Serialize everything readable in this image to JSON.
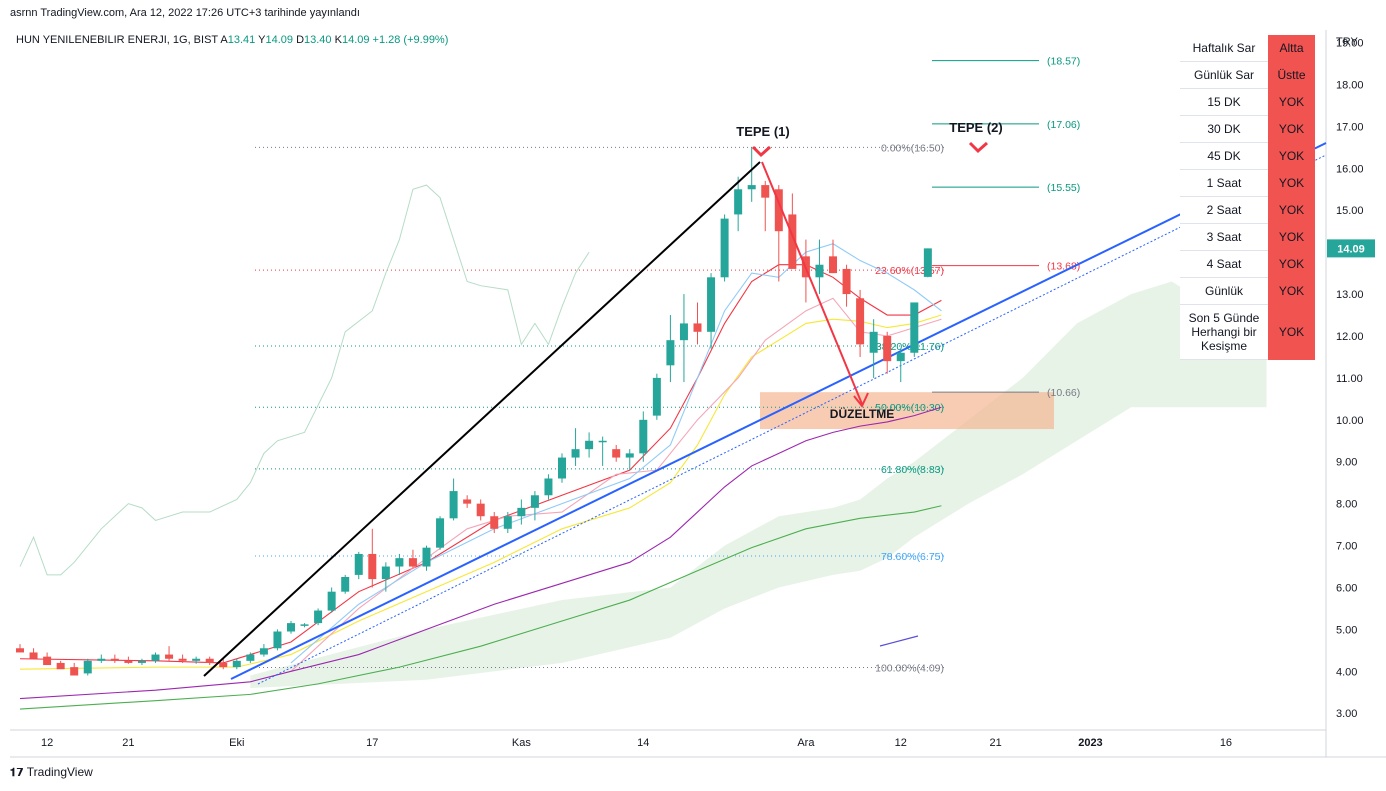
{
  "header": {
    "publish_line": "asrnn TradingView.com, Ara 12, 2022 17:26 UTC+3 tarihinde yayınlandı",
    "symbol_line": "HUN YENILENEBILIR ENERJI, 1G, BIST",
    "ohlc": [
      {
        "key": "A",
        "value": "13.41"
      },
      {
        "key": "Y",
        "value": "14.09"
      },
      {
        "key": "D",
        "value": "13.40"
      },
      {
        "key": "K",
        "value": "14.09"
      }
    ],
    "change": "+1.28 (+9.99%)"
  },
  "brand": "TradingView",
  "currency": "TRY",
  "last_price_label": "14.09",
  "signal_table": [
    {
      "label": "Haftalık Sar",
      "value": "Altta"
    },
    {
      "label": "Günlük Sar",
      "value": "Üstte"
    },
    {
      "label": "15 DK",
      "value": "YOK"
    },
    {
      "label": "30 DK",
      "value": "YOK"
    },
    {
      "label": "45 DK",
      "value": "YOK"
    },
    {
      "label": "1 Saat",
      "value": "YOK"
    },
    {
      "label": "2 Saat",
      "value": "YOK"
    },
    {
      "label": "3 Saat",
      "value": "YOK"
    },
    {
      "label": "4 Saat",
      "value": "YOK"
    },
    {
      "label": "Günlük",
      "value": "YOK"
    },
    {
      "label": "Son 5 Günde Herhangi bir Kesişme",
      "value": "YOK"
    }
  ],
  "colors": {
    "up": "#26a69a",
    "down": "#ef5350",
    "trendline": "#2962ff",
    "accent_red": "#f23645",
    "sma_red": "#f23645",
    "sma_yellow": "#f7e735",
    "sma_purple": "#9c27b0",
    "sma_green": "#4caf50",
    "cloud": "#e6f2e6",
    "correction_zone": "#f5b18a"
  },
  "chart_data": {
    "type": "candlestick",
    "y_axis": {
      "min": 2.6,
      "max": 19.3,
      "ticks": [
        "3.00",
        "4.00",
        "5.00",
        "6.00",
        "7.00",
        "8.00",
        "9.00",
        "10.00",
        "11.00",
        "12.00",
        "13.00",
        "14.00",
        "15.00",
        "16.00",
        "17.00",
        "18.00",
        "19.00"
      ]
    },
    "x_axis_labels": [
      {
        "label": "12",
        "i": 2
      },
      {
        "label": "21",
        "i": 8
      },
      {
        "label": "Eki",
        "i": 16
      },
      {
        "label": "17",
        "i": 26
      },
      {
        "label": "Kas",
        "i": 37
      },
      {
        "label": "14",
        "i": 46
      },
      {
        "label": "Ara",
        "i": 58
      },
      {
        "label": "12",
        "i": 65
      },
      {
        "label": "21",
        "i": 72
      },
      {
        "label": "2023",
        "i": 79
      },
      {
        "label": "16",
        "i": 89
      }
    ],
    "candles": [
      [
        4.55,
        4.65,
        4.48,
        4.45
      ],
      [
        4.45,
        4.55,
        4.35,
        4.3
      ],
      [
        4.35,
        4.45,
        4.22,
        4.15
      ],
      [
        4.2,
        4.25,
        4.1,
        4.05
      ],
      [
        4.1,
        4.2,
        3.95,
        3.9
      ],
      [
        3.95,
        4.3,
        3.9,
        4.25
      ],
      [
        4.25,
        4.4,
        4.2,
        4.3
      ],
      [
        4.3,
        4.4,
        4.2,
        4.25
      ],
      [
        4.25,
        4.35,
        4.18,
        4.2
      ],
      [
        4.2,
        4.3,
        4.15,
        4.25
      ],
      [
        4.25,
        4.45,
        4.2,
        4.4
      ],
      [
        4.4,
        4.6,
        4.25,
        4.3
      ],
      [
        4.3,
        4.4,
        4.2,
        4.25
      ],
      [
        4.25,
        4.35,
        4.18,
        4.3
      ],
      [
        4.3,
        4.35,
        4.15,
        4.2
      ],
      [
        4.2,
        4.3,
        4.05,
        4.1
      ],
      [
        4.1,
        4.3,
        4.05,
        4.25
      ],
      [
        4.25,
        4.45,
        4.2,
        4.4
      ],
      [
        4.4,
        4.65,
        4.35,
        4.55
      ],
      [
        4.55,
        5.0,
        4.5,
        4.95
      ],
      [
        4.95,
        5.2,
        4.9,
        5.15
      ],
      [
        5.1,
        5.15,
        5.05,
        5.12
      ],
      [
        5.15,
        5.5,
        5.1,
        5.45
      ],
      [
        5.45,
        6.0,
        5.4,
        5.9
      ],
      [
        5.9,
        6.3,
        5.85,
        6.25
      ],
      [
        6.3,
        6.85,
        6.2,
        6.8
      ],
      [
        6.8,
        7.4,
        6.0,
        6.2
      ],
      [
        6.2,
        6.6,
        5.9,
        6.5
      ],
      [
        6.5,
        6.8,
        6.3,
        6.7
      ],
      [
        6.7,
        6.9,
        6.45,
        6.5
      ],
      [
        6.5,
        7.0,
        6.4,
        6.95
      ],
      [
        6.95,
        7.7,
        6.9,
        7.65
      ],
      [
        7.65,
        8.6,
        7.6,
        8.3
      ],
      [
        8.1,
        8.2,
        7.9,
        8.0
      ],
      [
        8.0,
        8.1,
        7.6,
        7.7
      ],
      [
        7.7,
        7.8,
        7.3,
        7.4
      ],
      [
        7.4,
        7.8,
        7.3,
        7.7
      ],
      [
        7.7,
        8.1,
        7.5,
        7.9
      ],
      [
        7.9,
        8.3,
        7.6,
        8.2
      ],
      [
        8.2,
        8.7,
        8.1,
        8.6
      ],
      [
        8.6,
        9.2,
        8.5,
        9.1
      ],
      [
        9.1,
        9.8,
        8.9,
        9.3
      ],
      [
        9.3,
        9.7,
        9.1,
        9.5
      ],
      [
        9.5,
        9.6,
        8.9,
        9.5
      ],
      [
        9.3,
        9.4,
        9.0,
        9.1
      ],
      [
        9.1,
        9.3,
        8.8,
        9.2
      ],
      [
        9.2,
        10.2,
        9.0,
        10.0
      ],
      [
        10.1,
        11.1,
        10.0,
        11.0
      ],
      [
        11.3,
        12.5,
        10.9,
        11.9
      ],
      [
        11.9,
        13.0,
        10.9,
        12.3
      ],
      [
        12.3,
        12.8,
        11.8,
        12.1
      ],
      [
        12.1,
        13.5,
        11.7,
        13.4
      ],
      [
        13.4,
        14.9,
        13.3,
        14.8
      ],
      [
        14.9,
        15.8,
        14.5,
        15.5
      ],
      [
        15.5,
        16.5,
        15.2,
        15.6
      ],
      [
        15.6,
        15.7,
        14.5,
        15.3
      ],
      [
        15.5,
        15.6,
        13.3,
        14.5
      ],
      [
        14.9,
        15.4,
        13.7,
        13.6
      ],
      [
        13.9,
        14.3,
        12.8,
        13.4
      ],
      [
        13.4,
        14.3,
        13.0,
        13.7
      ],
      [
        13.9,
        14.3,
        13.5,
        13.5
      ],
      [
        13.6,
        13.7,
        12.7,
        13.0
      ],
      [
        12.9,
        13.1,
        11.5,
        11.8
      ],
      [
        11.6,
        12.4,
        11.0,
        12.1
      ],
      [
        12.0,
        12.1,
        11.1,
        11.4
      ],
      [
        11.4,
        11.7,
        10.9,
        11.6
      ],
      [
        11.6,
        12.8,
        11.5,
        12.8
      ],
      [
        13.41,
        14.09,
        13.4,
        14.09
      ]
    ],
    "moving_averages": [
      {
        "name": "sma_red",
        "color": "#f23645",
        "points": [
          [
            0,
            4.3
          ],
          [
            10,
            4.25
          ],
          [
            15,
            4.2
          ],
          [
            20,
            4.7
          ],
          [
            25,
            5.9
          ],
          [
            30,
            6.6
          ],
          [
            35,
            7.6
          ],
          [
            40,
            8.2
          ],
          [
            45,
            8.8
          ],
          [
            48,
            9.8
          ],
          [
            50,
            11.0
          ],
          [
            52,
            12.3
          ],
          [
            54,
            13.3
          ],
          [
            56,
            13.7
          ],
          [
            58,
            13.7
          ],
          [
            60,
            13.4
          ],
          [
            62,
            12.9
          ],
          [
            64,
            12.5
          ],
          [
            66,
            12.5
          ],
          [
            68,
            12.85
          ]
        ]
      },
      {
        "name": "sma_yellow",
        "color": "#f7e735",
        "points": [
          [
            0,
            4.05
          ],
          [
            10,
            4.1
          ],
          [
            16,
            4.1
          ],
          [
            20,
            4.4
          ],
          [
            25,
            5.2
          ],
          [
            30,
            5.9
          ],
          [
            35,
            6.6
          ],
          [
            40,
            7.4
          ],
          [
            45,
            7.9
          ],
          [
            48,
            8.5
          ],
          [
            50,
            9.4
          ],
          [
            52,
            10.6
          ],
          [
            54,
            11.5
          ],
          [
            56,
            11.9
          ],
          [
            58,
            12.3
          ],
          [
            60,
            12.4
          ],
          [
            62,
            12.35
          ],
          [
            64,
            12.2
          ],
          [
            66,
            12.3
          ],
          [
            68,
            12.5
          ]
        ]
      },
      {
        "name": "sma_pink",
        "color": "#f4a6b8",
        "points": [
          [
            20,
            4.0
          ],
          [
            25,
            5.5
          ],
          [
            30,
            6.7
          ],
          [
            33,
            7.4
          ],
          [
            36,
            7.7
          ],
          [
            40,
            7.8
          ],
          [
            44,
            8.7
          ],
          [
            47,
            8.8
          ],
          [
            50,
            10.0
          ],
          [
            53,
            11.0
          ],
          [
            55,
            11.9
          ],
          [
            58,
            12.6
          ],
          [
            60,
            12.9
          ],
          [
            62,
            12.1
          ],
          [
            64,
            12.0
          ],
          [
            66,
            12.2
          ],
          [
            68,
            12.4
          ]
        ]
      },
      {
        "name": "sma_purple",
        "color": "#9c27b0",
        "points": [
          [
            0,
            3.35
          ],
          [
            10,
            3.55
          ],
          [
            17,
            3.75
          ],
          [
            20,
            4.0
          ],
          [
            25,
            4.4
          ],
          [
            30,
            5.0
          ],
          [
            35,
            5.6
          ],
          [
            40,
            6.1
          ],
          [
            45,
            6.6
          ],
          [
            48,
            7.2
          ],
          [
            50,
            7.8
          ],
          [
            52,
            8.4
          ],
          [
            54,
            8.9
          ],
          [
            56,
            9.2
          ],
          [
            58,
            9.5
          ],
          [
            60,
            9.7
          ],
          [
            62,
            9.85
          ],
          [
            64,
            9.95
          ],
          [
            66,
            10.1
          ],
          [
            68,
            10.3
          ]
        ]
      },
      {
        "name": "sma_green",
        "color": "#4caf50",
        "points": [
          [
            0,
            3.1
          ],
          [
            10,
            3.3
          ],
          [
            17,
            3.45
          ],
          [
            22,
            3.7
          ],
          [
            28,
            4.1
          ],
          [
            34,
            4.6
          ],
          [
            40,
            5.2
          ],
          [
            45,
            5.7
          ],
          [
            50,
            6.4
          ],
          [
            54,
            6.95
          ],
          [
            58,
            7.4
          ],
          [
            62,
            7.65
          ],
          [
            66,
            7.8
          ],
          [
            68,
            7.95
          ]
        ]
      },
      {
        "name": "sma_blue_light",
        "color": "#90caf9",
        "points": [
          [
            20,
            4.2
          ],
          [
            25,
            5.6
          ],
          [
            30,
            6.6
          ],
          [
            35,
            7.4
          ],
          [
            40,
            8.0
          ],
          [
            45,
            8.6
          ],
          [
            48,
            9.4
          ],
          [
            50,
            11.0
          ],
          [
            52,
            12.6
          ],
          [
            54,
            13.5
          ],
          [
            56,
            13.4
          ],
          [
            58,
            14.0
          ],
          [
            60,
            14.2
          ],
          [
            62,
            13.8
          ],
          [
            64,
            13.5
          ],
          [
            66,
            13.1
          ],
          [
            68,
            12.6
          ]
        ]
      },
      {
        "name": "lagging_span",
        "color": "#b5dcc6",
        "points": [
          [
            0,
            6.5
          ],
          [
            1,
            7.2
          ],
          [
            2,
            6.3
          ],
          [
            3,
            6.3
          ],
          [
            4,
            6.6
          ],
          [
            6,
            7.4
          ],
          [
            8,
            8.0
          ],
          [
            9,
            7.9
          ],
          [
            10,
            7.6
          ],
          [
            12,
            7.8
          ],
          [
            14,
            7.8
          ],
          [
            16,
            8.1
          ],
          [
            17,
            8.5
          ],
          [
            18,
            9.2
          ],
          [
            19,
            9.5
          ],
          [
            21,
            9.7
          ],
          [
            23,
            11.0
          ],
          [
            24,
            12.1
          ],
          [
            26,
            12.6
          ],
          [
            27,
            13.5
          ],
          [
            28,
            14.3
          ],
          [
            29,
            15.5
          ],
          [
            30,
            15.6
          ],
          [
            31,
            15.3
          ],
          [
            32,
            14.3
          ],
          [
            33,
            13.3
          ],
          [
            34,
            13.2
          ],
          [
            36,
            13.1
          ],
          [
            37,
            11.8
          ],
          [
            38,
            12.3
          ],
          [
            39,
            11.8
          ],
          [
            40,
            12.7
          ],
          [
            41,
            13.5
          ],
          [
            42,
            14.0
          ]
        ]
      }
    ],
    "cloud_span": {
      "upper": [
        [
          17,
          3.9
        ],
        [
          30,
          5.0
        ],
        [
          40,
          5.7
        ],
        [
          48,
          6.0
        ],
        [
          52,
          7.0
        ],
        [
          56,
          7.7
        ],
        [
          60,
          7.9
        ],
        [
          62,
          8.1
        ],
        [
          64,
          8.6
        ],
        [
          66,
          9.0
        ],
        [
          70,
          10.0
        ],
        [
          74,
          11.0
        ],
        [
          78,
          12.3
        ],
        [
          82,
          13.0
        ],
        [
          85,
          13.3
        ],
        [
          86,
          13.1
        ],
        [
          90,
          12.8
        ],
        [
          92,
          12.7
        ]
      ],
      "lower": [
        [
          17,
          3.6
        ],
        [
          30,
          3.8
        ],
        [
          40,
          4.2
        ],
        [
          48,
          4.8
        ],
        [
          52,
          5.5
        ],
        [
          56,
          6.0
        ],
        [
          60,
          6.3
        ],
        [
          62,
          6.4
        ],
        [
          64,
          6.7
        ],
        [
          66,
          7.2
        ],
        [
          70,
          8.0
        ],
        [
          74,
          8.7
        ],
        [
          78,
          9.5
        ],
        [
          82,
          10.3
        ],
        [
          85,
          10.3
        ],
        [
          86,
          10.3
        ],
        [
          90,
          10.3
        ],
        [
          92,
          10.3
        ]
      ]
    },
    "fib_levels": [
      {
        "label": "0.00%(16.50)",
        "value": 16.5,
        "color": "#787b86"
      },
      {
        "label": "23.60%(13.57)",
        "value": 13.57,
        "color": "#f23645"
      },
      {
        "label": "38.20%(11.76)",
        "value": 11.76,
        "color": "#089981"
      },
      {
        "label": "50.00%(10.30)",
        "value": 10.3,
        "color": "#089981"
      },
      {
        "label": "61.80%(8.83)",
        "value": 8.83,
        "color": "#089981"
      },
      {
        "label": "78.60%(6.75)",
        "value": 6.75,
        "color": "#42a5f5"
      },
      {
        "label": "100.00%(4.09)",
        "value": 4.09,
        "color": "#787b86"
      }
    ],
    "target_levels": [
      {
        "label": "(18.57)",
        "value": 18.57,
        "color": "#089981"
      },
      {
        "label": "(17.06)",
        "value": 17.06,
        "color": "#089981"
      },
      {
        "label": "(15.55)",
        "value": 15.55,
        "color": "#089981"
      },
      {
        "label": "(13.68)",
        "value": 13.68,
        "color": "#f23645"
      },
      {
        "label": "(10.66)",
        "value": 10.66,
        "color": "#787b86"
      }
    ],
    "annotations": {
      "peak1": "TEPE (1)",
      "peak2": "TEPE (2)",
      "correction": "DÜZELTME"
    }
  }
}
